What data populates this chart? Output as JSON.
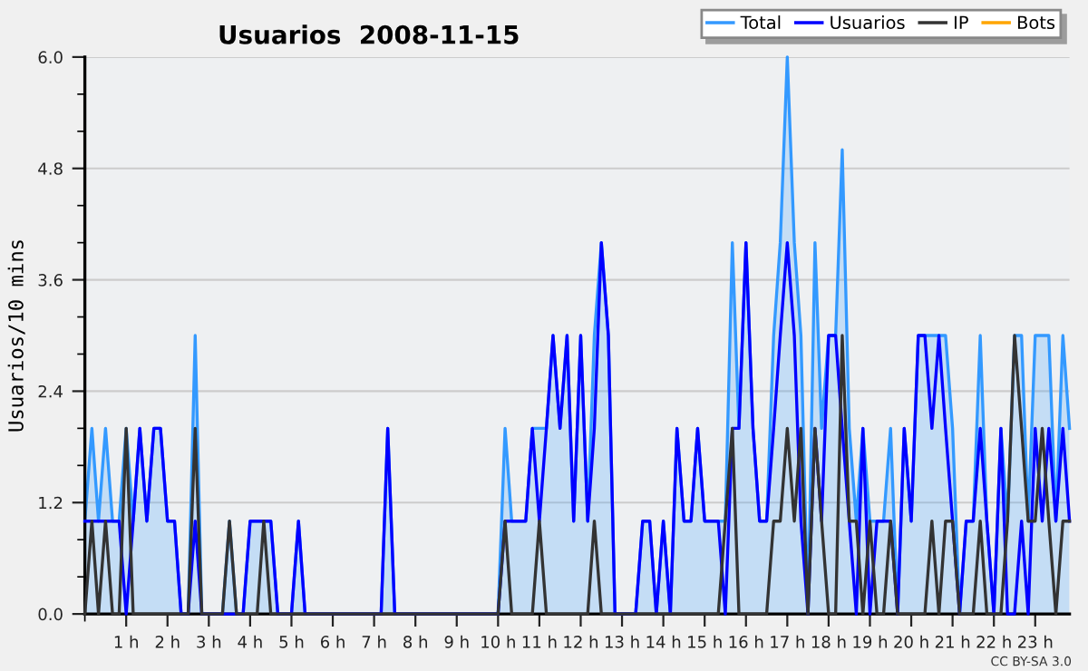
{
  "chart_data": {
    "type": "line",
    "title": "Usuarios  2008-11-15",
    "ylabel": "Usuarios/10 mins",
    "annotations": [
      "CC BY-SA 3.0"
    ],
    "x": [
      0,
      0.17,
      0.33,
      0.5,
      0.67,
      0.83,
      1,
      1.17,
      1.33,
      1.5,
      1.67,
      1.83,
      2,
      2.17,
      2.33,
      2.5,
      2.67,
      2.83,
      3,
      3.17,
      3.33,
      3.5,
      3.67,
      3.83,
      4,
      4.17,
      4.33,
      4.5,
      4.67,
      4.83,
      5,
      5.17,
      5.33,
      5.5,
      5.67,
      5.83,
      6,
      6.17,
      6.33,
      6.5,
      6.67,
      6.83,
      7,
      7.17,
      7.33,
      7.5,
      7.67,
      7.83,
      8,
      8.17,
      8.33,
      8.5,
      8.67,
      8.83,
      9,
      9.17,
      9.33,
      9.5,
      9.67,
      9.83,
      10,
      10.17,
      10.33,
      10.5,
      10.67,
      10.83,
      11,
      11.17,
      11.33,
      11.5,
      11.67,
      11.83,
      12,
      12.17,
      12.33,
      12.5,
      12.67,
      12.83,
      13,
      13.17,
      13.33,
      13.5,
      13.67,
      13.83,
      14,
      14.17,
      14.33,
      14.5,
      14.67,
      14.83,
      15,
      15.17,
      15.33,
      15.5,
      15.67,
      15.83,
      16,
      16.17,
      16.33,
      16.5,
      16.67,
      16.83,
      17,
      17.17,
      17.33,
      17.5,
      17.67,
      17.83,
      18,
      18.17,
      18.33,
      18.5,
      18.67,
      18.83,
      19,
      19.17,
      19.33,
      19.5,
      19.67,
      19.83,
      20,
      20.17,
      20.33,
      20.5,
      20.67,
      20.83,
      21,
      21.17,
      21.33,
      21.5,
      21.67,
      21.83,
      22,
      22.17,
      22.33,
      22.5,
      22.67,
      22.83,
      23,
      23.17,
      23.33,
      23.5,
      23.67,
      23.83
    ],
    "series": [
      {
        "name": "Total",
        "type": "area",
        "color": "#3399ff",
        "values": [
          1,
          2,
          1,
          2,
          1,
          1,
          2,
          1,
          2,
          1,
          2,
          2,
          1,
          1,
          0,
          0,
          3,
          0,
          0,
          0,
          0,
          1,
          0,
          0,
          1,
          1,
          1,
          1,
          0,
          0,
          0,
          1,
          0,
          0,
          0,
          0,
          0,
          0,
          0,
          0,
          0,
          0,
          0,
          0,
          2,
          0,
          0,
          0,
          0,
          0,
          0,
          0,
          0,
          0,
          0,
          0,
          0,
          0,
          0,
          0,
          0,
          2,
          1,
          1,
          1,
          2,
          2,
          2,
          3,
          2,
          3,
          1,
          3,
          1,
          3,
          4,
          3,
          0,
          0,
          0,
          0,
          1,
          1,
          0,
          1,
          0,
          2,
          1,
          1,
          2,
          1,
          1,
          1,
          1,
          4,
          2,
          4,
          2,
          1,
          1,
          3,
          4,
          6,
          4,
          3,
          0,
          4,
          2,
          3,
          3,
          5,
          2,
          1,
          2,
          1,
          1,
          1,
          2,
          0,
          2,
          1,
          3,
          3,
          3,
          3,
          3,
          2,
          0,
          1,
          1,
          3,
          1,
          0,
          2,
          1,
          3,
          3,
          1,
          3,
          3,
          3,
          1,
          3,
          2
        ]
      },
      {
        "name": "Usuarios",
        "color": "#0000ff",
        "values": [
          1,
          1,
          1,
          1,
          1,
          1,
          0,
          1,
          2,
          1,
          2,
          2,
          1,
          1,
          0,
          0,
          1,
          0,
          0,
          0,
          0,
          0,
          0,
          0,
          1,
          1,
          1,
          1,
          0,
          0,
          0,
          1,
          0,
          0,
          0,
          0,
          0,
          0,
          0,
          0,
          0,
          0,
          0,
          0,
          2,
          0,
          0,
          0,
          0,
          0,
          0,
          0,
          0,
          0,
          0,
          0,
          0,
          0,
          0,
          0,
          0,
          1,
          1,
          1,
          1,
          2,
          1,
          2,
          3,
          2,
          3,
          1,
          3,
          1,
          2,
          4,
          3,
          0,
          0,
          0,
          0,
          1,
          1,
          0,
          1,
          0,
          2,
          1,
          1,
          2,
          1,
          1,
          1,
          0,
          2,
          2,
          4,
          2,
          1,
          1,
          2,
          3,
          4,
          3,
          1,
          0,
          2,
          1,
          3,
          3,
          2,
          1,
          0,
          2,
          0,
          1,
          1,
          1,
          0,
          2,
          1,
          3,
          3,
          2,
          3,
          2,
          1,
          0,
          1,
          1,
          2,
          1,
          0,
          2,
          0,
          0,
          1,
          0,
          2,
          1,
          2,
          1,
          2,
          1
        ]
      },
      {
        "name": "IP",
        "color": "#333333",
        "values": [
          0,
          1,
          0,
          1,
          0,
          0,
          2,
          0,
          0,
          0,
          0,
          0,
          0,
          0,
          0,
          0,
          2,
          0,
          0,
          0,
          0,
          1,
          0,
          0,
          0,
          0,
          1,
          0,
          0,
          0,
          0,
          0,
          0,
          0,
          0,
          0,
          0,
          0,
          0,
          0,
          0,
          0,
          0,
          0,
          0,
          0,
          0,
          0,
          0,
          0,
          0,
          0,
          0,
          0,
          0,
          0,
          0,
          0,
          0,
          0,
          0,
          1,
          0,
          0,
          0,
          0,
          1,
          0,
          0,
          0,
          0,
          0,
          0,
          0,
          1,
          0,
          0,
          0,
          0,
          0,
          0,
          0,
          0,
          0,
          0,
          0,
          0,
          0,
          0,
          0,
          0,
          0,
          0,
          1,
          2,
          0,
          0,
          0,
          0,
          0,
          1,
          1,
          2,
          1,
          2,
          0,
          2,
          1,
          0,
          0,
          3,
          1,
          1,
          0,
          1,
          0,
          0,
          1,
          0,
          0,
          0,
          0,
          0,
          1,
          0,
          1,
          1,
          0,
          0,
          0,
          1,
          0,
          0,
          0,
          1,
          3,
          2,
          1,
          1,
          2,
          1,
          0,
          1,
          1
        ]
      },
      {
        "name": "Bots",
        "color": "#ffa500",
        "values": [
          null,
          null,
          null,
          null,
          null,
          null,
          null,
          null,
          null,
          null,
          null,
          null,
          null,
          null,
          null,
          null,
          null,
          null,
          null,
          null,
          null,
          null,
          null,
          null,
          null,
          null,
          null,
          null,
          null,
          null,
          null,
          null,
          null,
          null,
          null,
          null,
          null,
          null,
          null,
          null,
          null,
          null,
          null,
          null,
          null,
          null,
          null,
          null,
          null,
          null,
          null,
          null,
          null,
          null,
          null,
          null,
          null,
          null,
          null,
          null,
          null,
          null,
          null,
          null,
          null,
          null,
          null,
          null,
          null,
          null,
          null,
          null,
          null,
          null,
          null,
          null,
          null,
          null,
          null,
          null,
          null,
          null,
          null,
          null,
          null,
          null,
          null,
          null,
          null,
          null,
          null,
          null,
          null,
          null,
          null,
          null,
          null,
          null,
          null,
          null,
          null,
          null,
          null,
          null,
          null,
          null,
          null,
          null,
          null,
          null,
          null,
          null,
          null,
          null,
          null,
          null,
          null,
          null,
          null,
          null,
          null,
          null,
          null,
          null,
          null,
          null,
          null,
          null,
          null,
          null,
          null,
          null,
          null,
          null,
          null,
          null,
          null,
          null,
          null,
          null,
          null,
          null,
          null,
          null
        ]
      }
    ],
    "xlim": [
      0,
      23.83
    ],
    "xticks": [
      {
        "value": 0,
        "label": null
      },
      {
        "value": 1,
        "label": "1 h"
      },
      {
        "value": 2,
        "label": "2 h"
      },
      {
        "value": 3,
        "label": "3 h"
      },
      {
        "value": 4,
        "label": "4 h"
      },
      {
        "value": 5,
        "label": "5 h"
      },
      {
        "value": 6,
        "label": "6 h"
      },
      {
        "value": 7,
        "label": "7 h"
      },
      {
        "value": 8,
        "label": "8 h"
      },
      {
        "value": 9,
        "label": "9 h"
      },
      {
        "value": 10,
        "label": "10 h"
      },
      {
        "value": 11,
        "label": "11 h"
      },
      {
        "value": 12,
        "label": "12 h"
      },
      {
        "value": 13,
        "label": "13 h"
      },
      {
        "value": 14,
        "label": "14 h"
      },
      {
        "value": 15,
        "label": "15 h"
      },
      {
        "value": 16,
        "label": "16 h"
      },
      {
        "value": 17,
        "label": "17 h"
      },
      {
        "value": 18,
        "label": "18 h"
      },
      {
        "value": 19,
        "label": "19 h"
      },
      {
        "value": 20,
        "label": "20 h"
      },
      {
        "value": 21,
        "label": "21 h"
      },
      {
        "value": 22,
        "label": "22 h"
      },
      {
        "value": 23,
        "label": "23 h"
      }
    ],
    "ylim": [
      0,
      6
    ],
    "yticks": [
      {
        "value": 0,
        "label": "0.0"
      },
      {
        "value": 0.4,
        "label": null
      },
      {
        "value": 0.8,
        "label": null
      },
      {
        "value": 1.2,
        "label": "1.2"
      },
      {
        "value": 1.6,
        "label": null
      },
      {
        "value": 2,
        "label": null
      },
      {
        "value": 2.4,
        "label": "2.4"
      },
      {
        "value": 2.8,
        "label": null
      },
      {
        "value": 3.2,
        "label": null
      },
      {
        "value": 3.6,
        "label": "3.6"
      },
      {
        "value": 4,
        "label": null
      },
      {
        "value": 4.4,
        "label": null
      },
      {
        "value": 4.8,
        "label": "4.8"
      },
      {
        "value": 5.2,
        "label": null
      },
      {
        "value": 5.6,
        "label": null
      },
      {
        "value": 6,
        "label": "6.0"
      }
    ],
    "grid": "y",
    "legend": "top right",
    "marker": "none",
    "line_style": "solid"
  }
}
